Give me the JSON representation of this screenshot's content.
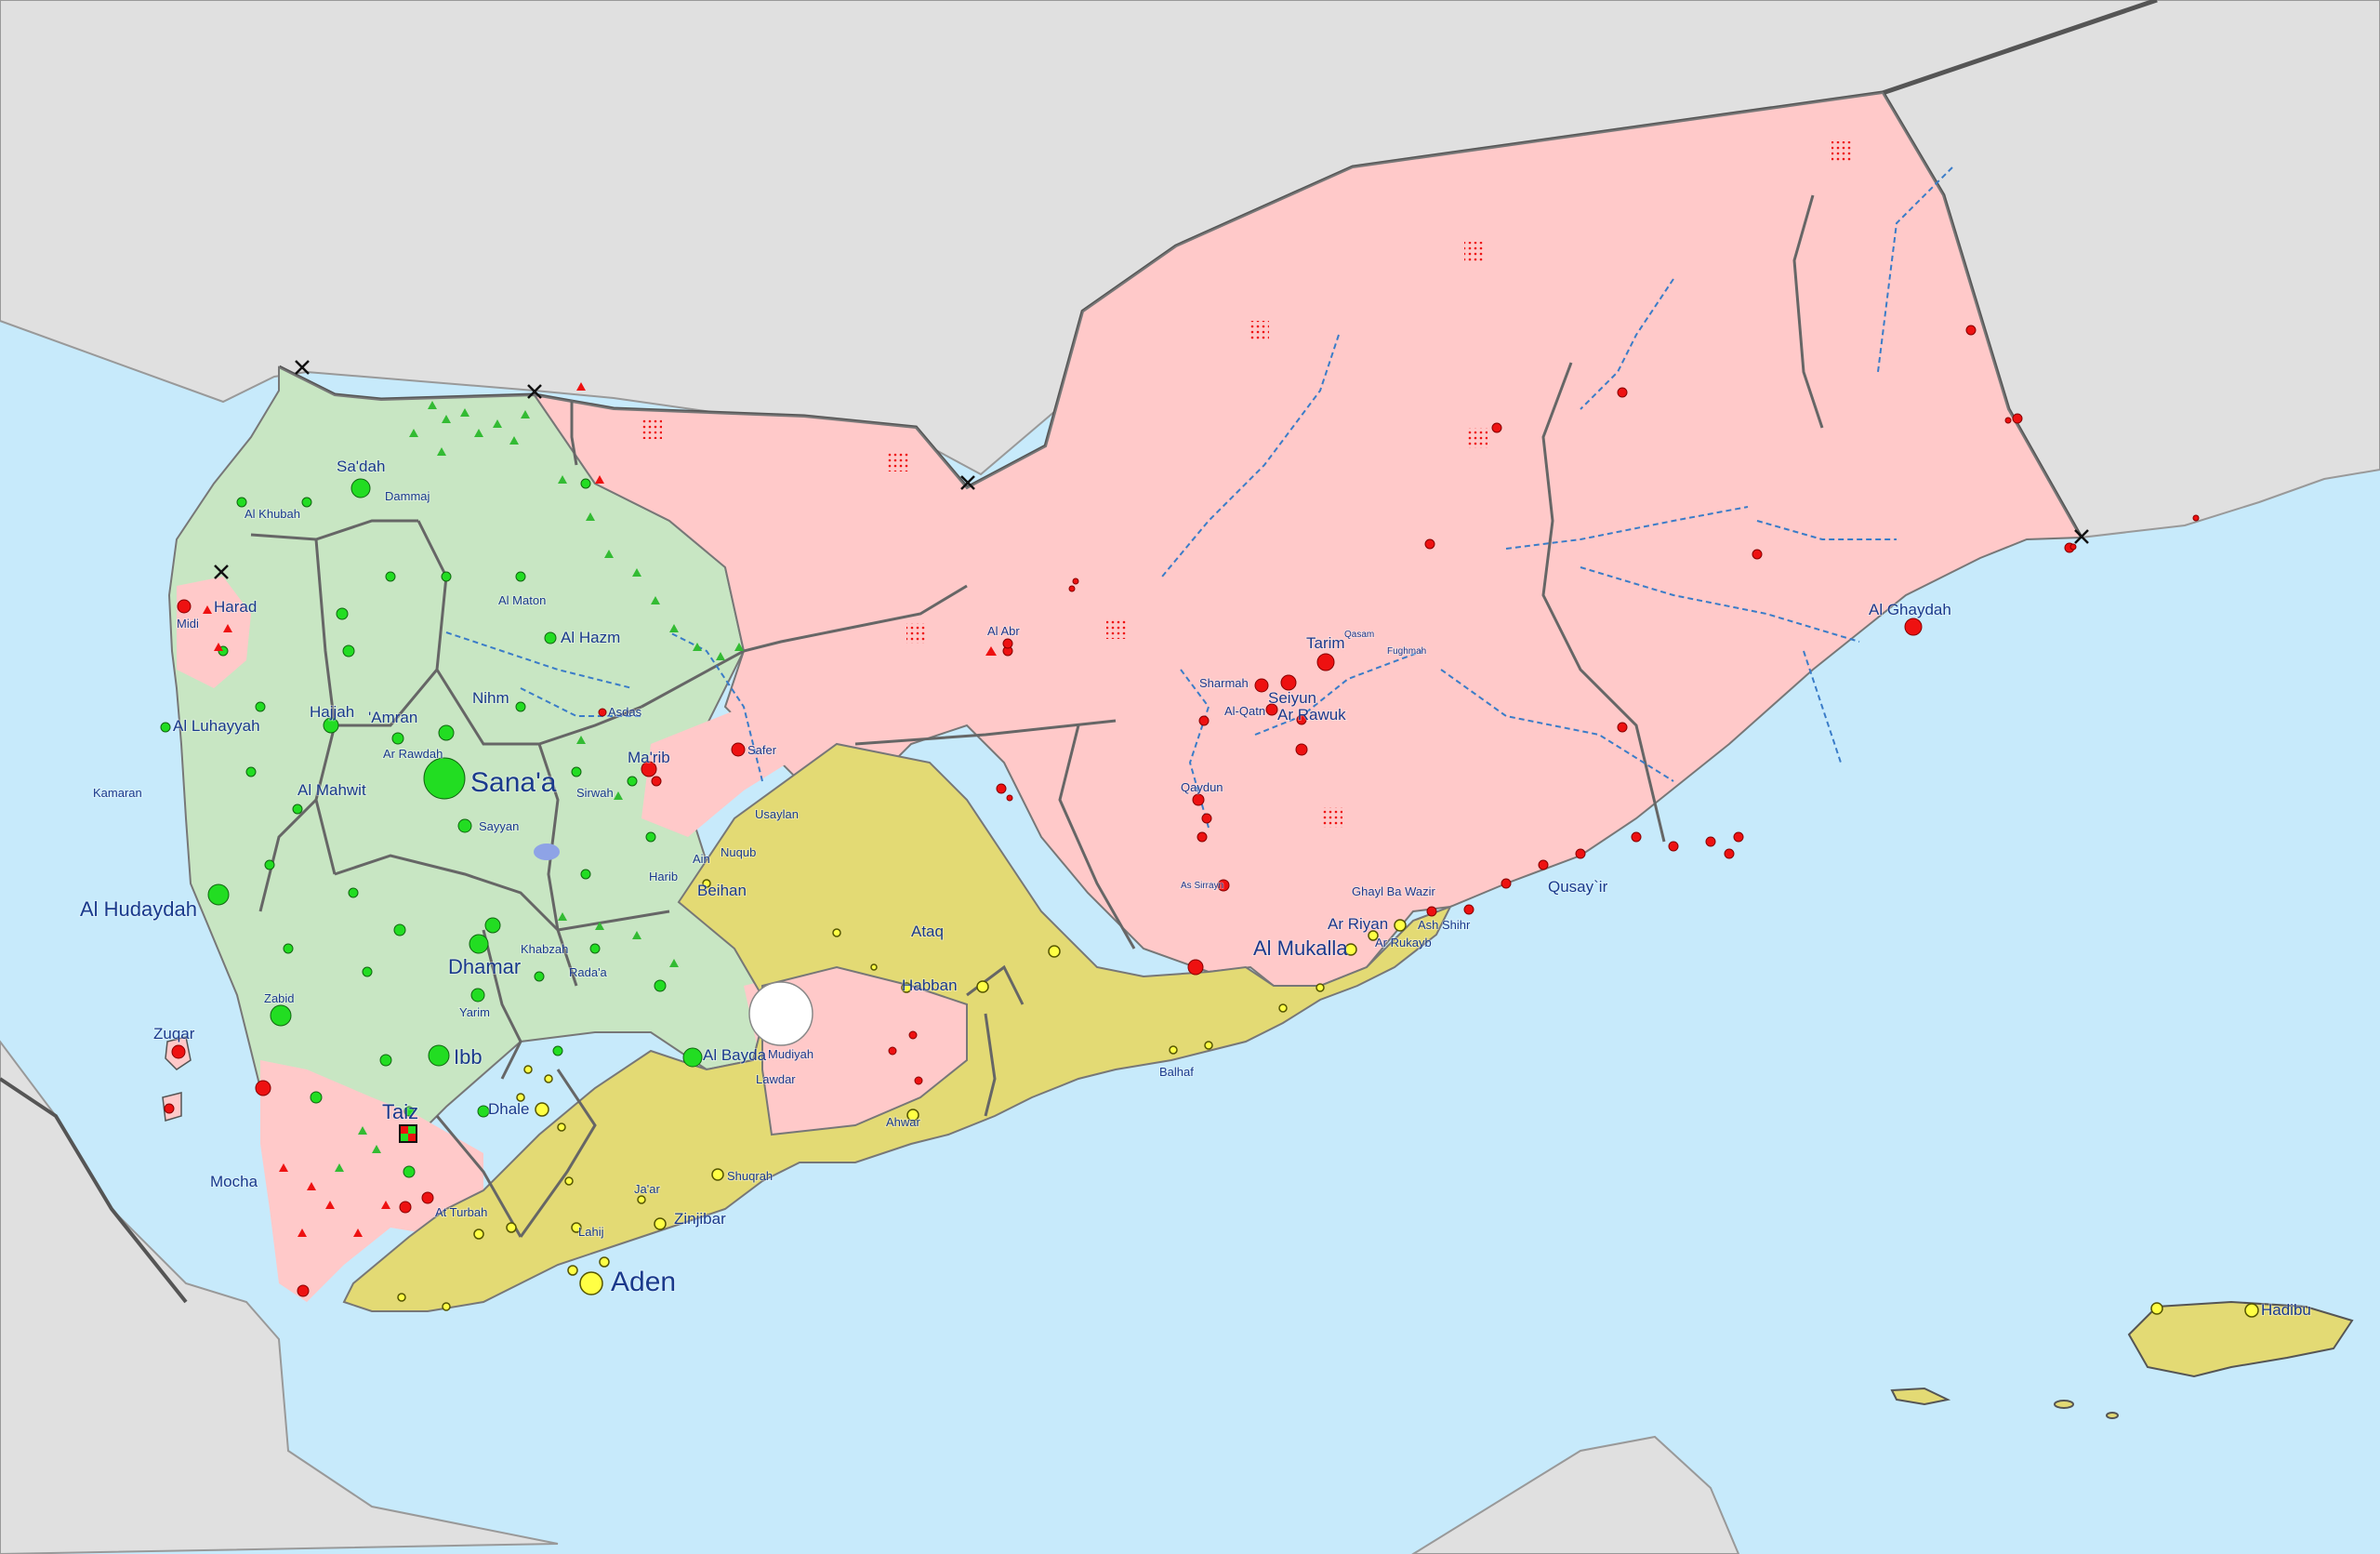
{
  "colors": {
    "sea": "#c7eafb",
    "foreign_land": "#e0e0e0",
    "houthi": "#c8e6c3",
    "aqap_government": "#ffc9c9",
    "southern": "#e3da74",
    "neutral": "#ffffff",
    "border": "#555555",
    "wadi": "#3a7cc8",
    "label": "#1a3a8c",
    "marker_green": "#22dd22",
    "marker_red": "#ee1111",
    "marker_yellow": "#ffff44"
  },
  "labels": {
    "sanaa": "Sana'a",
    "aden": "Aden",
    "al_hudaydah": "Al Hudaydah",
    "al_mukalla": "Al Mukalla",
    "taiz": "Taiz",
    "ibb": "Ibb",
    "dhamar": "Dhamar",
    "saadah": "Sa'dah",
    "dammaj": "Dammaj",
    "al_hazm": "Al Hazm",
    "al_maton": "Al Maton",
    "hajjah": "Hajjah",
    "amran": "'Amran",
    "al_luhayyah": "Al Luhayyah",
    "al_mahwit": "Al Mahwit",
    "kamaran": "Kamaran",
    "harad": "Harad",
    "midi": "Midi",
    "al_khubah": "Al Khubah",
    "nihm": "Nihm",
    "ar_rawdah": "Ar Rawdah",
    "sayyan": "Sayyan",
    "asdas": "Asdas",
    "marib": "Ma'rib",
    "sirwah": "Sirwah",
    "safer": "Safer",
    "harib": "Harib",
    "ain": "Ain",
    "nuqub": "Nuqub",
    "beihan": "Beihan",
    "usaylan": "Usaylan",
    "ataq": "Ataq",
    "habban": "Habban",
    "khabzah": "Khabzah",
    "radaa": "Rada'a",
    "yarim": "Yarim",
    "zabid": "Zabid",
    "zuqar": "Zuqar",
    "mocha": "Mocha",
    "dhale": "Dhale",
    "al_bayda": "Al Bayda",
    "mudiyah": "Mudiyah",
    "lawdar": "Lawdar",
    "ahwar": "Ahwar",
    "balhaf": "Balhaf",
    "at_turbah": "At Turbah",
    "jaar": "Ja'ar",
    "shuqrah": "Shuqrah",
    "zinjibar": "Zinjibar",
    "lahij": "Lahij",
    "al_abr": "Al Abr",
    "tarim": "Tarim",
    "qasam": "Qasam",
    "fughmah": "Fughmah",
    "sharmah": "Sharmah",
    "seiyun": "Seiyun",
    "al_qatn": "Al-Qatn",
    "ar_rawuk": "Ar Rawuk",
    "qaydun": "Qaydun",
    "as_sirrayn": "As Sirrayn",
    "ghayl_ba_wazir": "Ghayl Ba Wazir",
    "ash_shihr": "Ash Shihr",
    "ar_riyan": "Ar Riyan",
    "ar_rukayb": "Ar Rukayb",
    "qusayir": "Qusay`ir",
    "al_ghaydah": "Al Ghaydah",
    "hadibu": "Hadibu"
  }
}
